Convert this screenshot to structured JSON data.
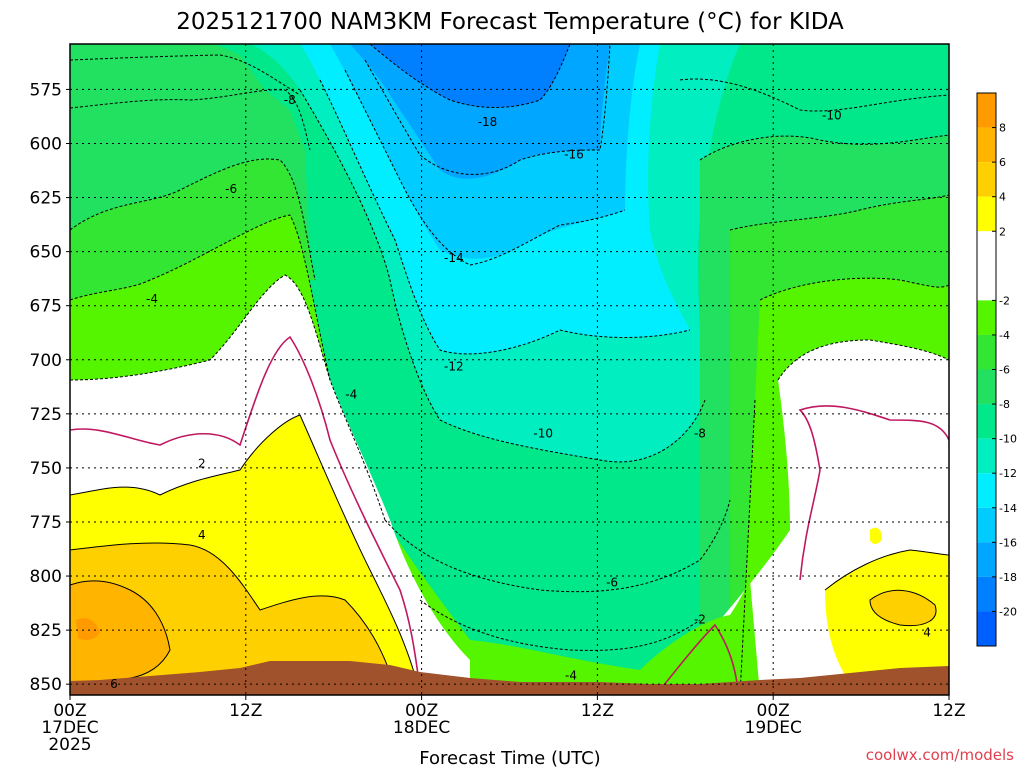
{
  "chart_data": {
    "type": "heatmap",
    "title": "2025121700 NAM3KM Forecast Temperature (°C) for KIDA",
    "xlabel": "Forecast Time (UTC)",
    "ylabel": "",
    "x_ticks": [
      {
        "hours": 0,
        "lines": [
          "00Z",
          "17DEC",
          "2025"
        ]
      },
      {
        "hours": 12,
        "lines": [
          "12Z"
        ]
      },
      {
        "hours": 24,
        "lines": [
          "00Z",
          "18DEC"
        ]
      },
      {
        "hours": 36,
        "lines": [
          "12Z"
        ]
      },
      {
        "hours": 48,
        "lines": [
          "00Z",
          "19DEC"
        ]
      },
      {
        "hours": 60,
        "lines": [
          "12Z"
        ]
      }
    ],
    "xlim": [
      0,
      60
    ],
    "y_ticks": [
      575,
      600,
      625,
      650,
      675,
      700,
      725,
      750,
      775,
      800,
      825,
      850
    ],
    "ylim": [
      855,
      554
    ],
    "ground_color": "#a0522d",
    "grid": true,
    "colorbar": {
      "position": "right",
      "ticks": [
        8,
        6,
        4,
        2,
        -2,
        -4,
        -6,
        -8,
        -10,
        -12,
        -14,
        -16,
        -18,
        -20
      ],
      "bands": [
        {
          "lo": 8,
          "hi": 10,
          "color": "#ff9a00"
        },
        {
          "lo": 6,
          "hi": 8,
          "color": "#ffb400"
        },
        {
          "lo": 4,
          "hi": 6,
          "color": "#ffd000"
        },
        {
          "lo": 2,
          "hi": 4,
          "color": "#ffff00"
        },
        {
          "lo": -2,
          "hi": 2,
          "color": "#ffffff"
        },
        {
          "lo": -4,
          "hi": -2,
          "color": "#55f500"
        },
        {
          "lo": -6,
          "hi": -4,
          "color": "#33e633"
        },
        {
          "lo": -8,
          "hi": -6,
          "color": "#22e060"
        },
        {
          "lo": -10,
          "hi": -8,
          "color": "#00e88a"
        },
        {
          "lo": -12,
          "hi": -10,
          "color": "#00eec0"
        },
        {
          "lo": -14,
          "hi": -12,
          "color": "#00eeff"
        },
        {
          "lo": -16,
          "hi": -14,
          "color": "#00ccff"
        },
        {
          "lo": -18,
          "hi": -16,
          "color": "#00a6ff"
        },
        {
          "lo": -20,
          "hi": -18,
          "color": "#0080ff"
        },
        {
          "lo": -22,
          "hi": -20,
          "color": "#0060ff"
        }
      ]
    },
    "contour_labels": [
      {
        "text": "-8",
        "hours": 15.0,
        "level": 580
      },
      {
        "text": "-6",
        "hours": 11.0,
        "level": 621
      },
      {
        "text": "-4",
        "hours": 5.6,
        "level": 672
      },
      {
        "text": "-4",
        "hours": 19.2,
        "level": 716
      },
      {
        "text": "2",
        "hours": 9.0,
        "level": 748
      },
      {
        "text": "4",
        "hours": 9.0,
        "level": 781
      },
      {
        "text": "6",
        "hours": 3.0,
        "level": 850
      },
      {
        "text": "-18",
        "hours": 28.5,
        "level": 590
      },
      {
        "text": "-16",
        "hours": 34.4,
        "level": 605
      },
      {
        "text": "-14",
        "hours": 26.2,
        "level": 653
      },
      {
        "text": "-12",
        "hours": 26.2,
        "level": 703
      },
      {
        "text": "-10",
        "hours": 32.3,
        "level": 734
      },
      {
        "text": "-8",
        "hours": 43.0,
        "level": 734
      },
      {
        "text": "-6",
        "hours": 37.0,
        "level": 803
      },
      {
        "text": "-4",
        "hours": 34.2,
        "level": 846
      },
      {
        "text": "-2",
        "hours": 43.0,
        "level": 820
      },
      {
        "text": "-10",
        "hours": 52.0,
        "level": 587
      },
      {
        "text": "4",
        "hours": 58.5,
        "level": 826
      }
    ]
  },
  "credit": "coolwx.com/models"
}
